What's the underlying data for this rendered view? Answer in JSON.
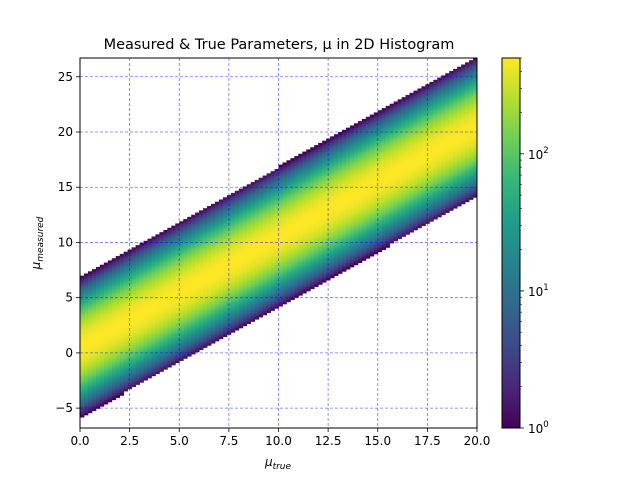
{
  "chart_data": {
    "type": "heatmap",
    "title": "Measured & True Parameters, μ in 2D Histogram",
    "xlabel": "μ",
    "xlabel_sub": "true",
    "ylabel": "μ",
    "ylabel_sub": "measured",
    "xlim": [
      0,
      20
    ],
    "ylim": [
      -6.8,
      26.7
    ],
    "x_ticks": [
      0,
      2.5,
      5,
      7.5,
      10,
      12.5,
      15,
      17.5,
      20
    ],
    "x_tick_labels": [
      "0.0",
      "2.5",
      "5.0",
      "7.5",
      "10.0",
      "12.5",
      "15.0",
      "17.5",
      "20.0"
    ],
    "y_ticks": [
      -5,
      0,
      5,
      10,
      15,
      20,
      25
    ],
    "y_tick_labels": [
      "−5",
      "0",
      "5",
      "10",
      "15",
      "20",
      "25"
    ],
    "grid": true,
    "grid_color": "#0000ff",
    "colormap": "viridis",
    "colorbar": {
      "scale": "log",
      "range": [
        1,
        500
      ],
      "ticks": [
        1,
        10,
        100
      ],
      "tick_base": "10",
      "tick_exponents": [
        "0",
        "1",
        "2"
      ]
    },
    "band": {
      "relation": "μ_measured ≈ μ_true + 0.5",
      "spread_sigma": 1.8,
      "max_count": 500
    }
  }
}
